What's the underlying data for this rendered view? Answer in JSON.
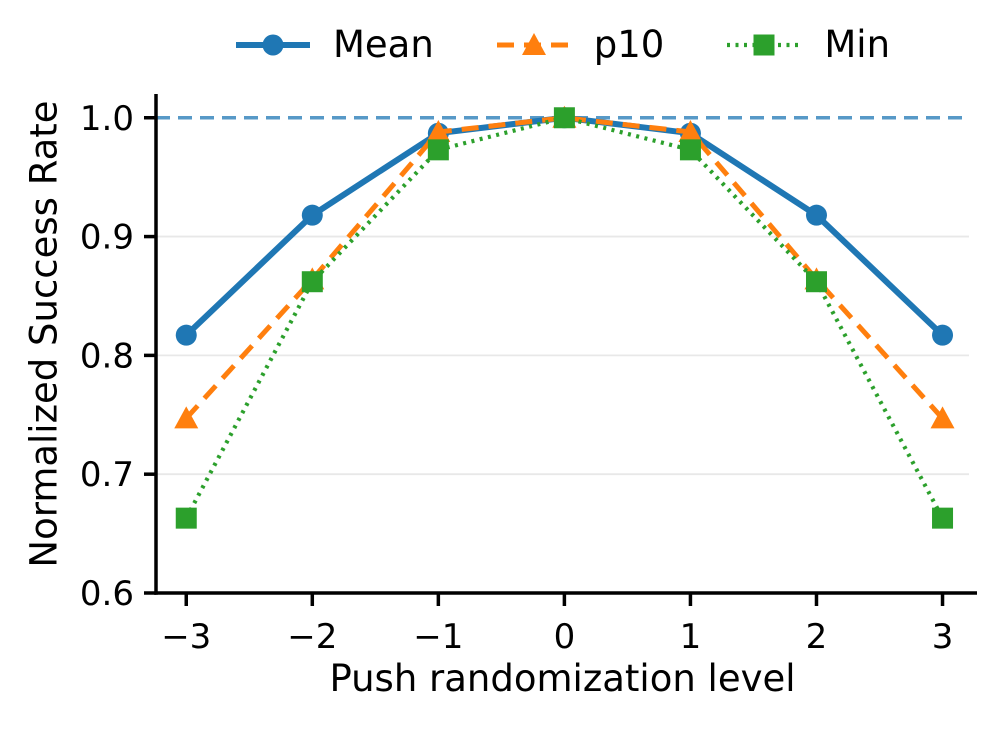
{
  "figure": {
    "background": "#ffffff",
    "text_color": "#000000"
  },
  "chart_data": {
    "type": "line",
    "x": [
      -3,
      -2,
      -1,
      0,
      1,
      2,
      3
    ],
    "series": [
      {
        "name": "Mean",
        "color": "#1f77b4",
        "linestyle": "solid",
        "marker": "circle",
        "linewidth": 6,
        "values": [
          0.817,
          0.918,
          0.987,
          1.0,
          0.987,
          0.918,
          0.817
        ]
      },
      {
        "name": "p10",
        "color": "#ff7f0e",
        "linestyle": "dashed",
        "marker": "triangle",
        "linewidth": 5,
        "values": [
          0.747,
          0.864,
          0.988,
          1.0,
          0.988,
          0.864,
          0.747
        ]
      },
      {
        "name": "Min",
        "color": "#2ca02c",
        "linestyle": "dotted",
        "marker": "square",
        "linewidth": 4.2,
        "values": [
          0.663,
          0.862,
          0.973,
          1.0,
          0.973,
          0.862,
          0.663
        ]
      }
    ],
    "reference_line": {
      "y": 1.0,
      "color": "#1f77b4",
      "opacity": 0.75,
      "style": "dashed"
    },
    "title": "",
    "xlabel": "Push randomization level",
    "ylabel": "Normalized Success Rate",
    "xticks": [
      -3,
      -2,
      -1,
      0,
      1,
      2,
      3
    ],
    "xtick_labels": [
      "−3",
      "−2",
      "−1",
      "0",
      "1",
      "2",
      "3"
    ],
    "ytick_labels": [
      "0.6",
      "0.7",
      "0.8",
      "0.9",
      "1.0"
    ],
    "yticks": [
      0.6,
      0.7,
      0.8,
      0.9,
      1.0
    ],
    "xlim": [
      -3.24,
      3.21
    ],
    "ylim": [
      0.6,
      1.02
    ],
    "grid": "horizontal",
    "grid_color": "#e8e8e8",
    "axis_color": "#000000",
    "legend_position": "top-center"
  }
}
